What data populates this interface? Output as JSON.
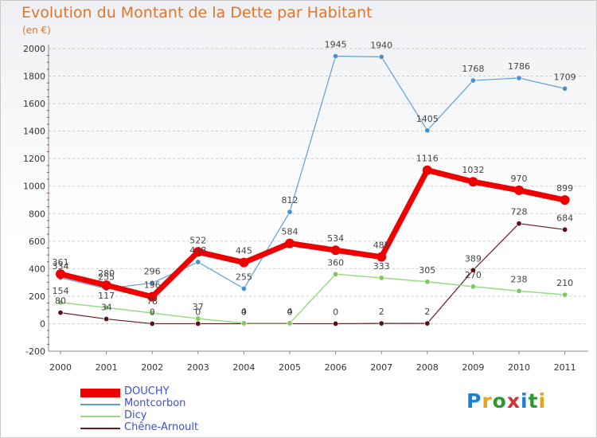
{
  "title": "Evolution du Montant de la Dette par Habitant",
  "unit_label": "(en €)",
  "logo_text": "Proxiti",
  "colors": {
    "title": "#e0762e",
    "legend_text": "#3c4fd8",
    "grid": "#cccccc",
    "logo": [
      "#1d7fd3",
      "#e8a313",
      "#2c9a2e",
      "#d6312e",
      "#1d7fd3",
      "#2c9a2e",
      "#e8a313"
    ]
  },
  "chart_data": {
    "type": "line",
    "title": "Evolution du Montant de la Dette par Habitant",
    "ylabel": "(en €)",
    "categories": [
      "2000",
      "2001",
      "2002",
      "2003",
      "2004",
      "2005",
      "2006",
      "2007",
      "2008",
      "2009",
      "2010",
      "2011"
    ],
    "ylim": [
      -200,
      2000
    ],
    "yticks": [
      "-200",
      "0",
      "200",
      "400",
      "600",
      "800",
      "1000",
      "1200",
      "1400",
      "1600",
      "1800",
      "2000"
    ],
    "grid": "horizontal dashed",
    "legend_position": "bottom-left",
    "series": [
      {
        "name": "Chêne-Arnoult",
        "color": "#6b1a1f",
        "marker": "#5a1016",
        "width": 1.2,
        "values": [
          80,
          34,
          0,
          0,
          0,
          0,
          0,
          2,
          2,
          389,
          728,
          684
        ],
        "labels": [
          "80",
          "34",
          "",
          "",
          "",
          "",
          "0",
          "2",
          "2",
          "389",
          "728",
          "684"
        ]
      },
      {
        "name": "Dicy",
        "color": "#98dc80",
        "marker": "#7cc861",
        "width": 1.5,
        "values": [
          154,
          117,
          78,
          37,
          4,
          4,
          360,
          333,
          305,
          270,
          238,
          210
        ],
        "labels": [
          "154",
          "117",
          "78",
          "37",
          "4",
          "4",
          "360",
          "333",
          "305",
          "270",
          "238",
          "210"
        ]
      },
      {
        "name": "Montcorbon",
        "color": "#5f9fd6",
        "marker": "#4d8fcc",
        "width": 1.2,
        "values": [
          334,
          255,
          296,
          448,
          255,
          812,
          1945,
          1940,
          1405,
          1768,
          1786,
          1709
        ],
        "labels": [
          "334",
          "255",
          "296",
          "448",
          "255",
          "812",
          "1945",
          "1940",
          "1405",
          "1768",
          "1786",
          "1709"
        ]
      },
      {
        "name": "DOUCHY",
        "color": "#ee0000",
        "marker": "#ee0000",
        "width": 7,
        "values": [
          361,
          280,
          196,
          522,
          445,
          584,
          534,
          485,
          1116,
          1032,
          970,
          899
        ],
        "labels": [
          "361",
          "280",
          "196",
          "522",
          "445",
          "584",
          "534",
          "485",
          "1116",
          "1032",
          "970",
          "899"
        ]
      }
    ],
    "extra_labels": [
      "0",
      "0",
      "0",
      "0"
    ]
  },
  "legend": [
    {
      "label": "DOUCHY",
      "color": "#ee0000",
      "thickness": 11
    },
    {
      "label": "Montcorbon",
      "color": "#5f9fd6",
      "thickness": 2
    },
    {
      "label": "Dicy",
      "color": "#98dc80",
      "thickness": 2
    },
    {
      "label": "Chêne-Arnoult",
      "color": "#6b1a1f",
      "thickness": 2
    }
  ]
}
